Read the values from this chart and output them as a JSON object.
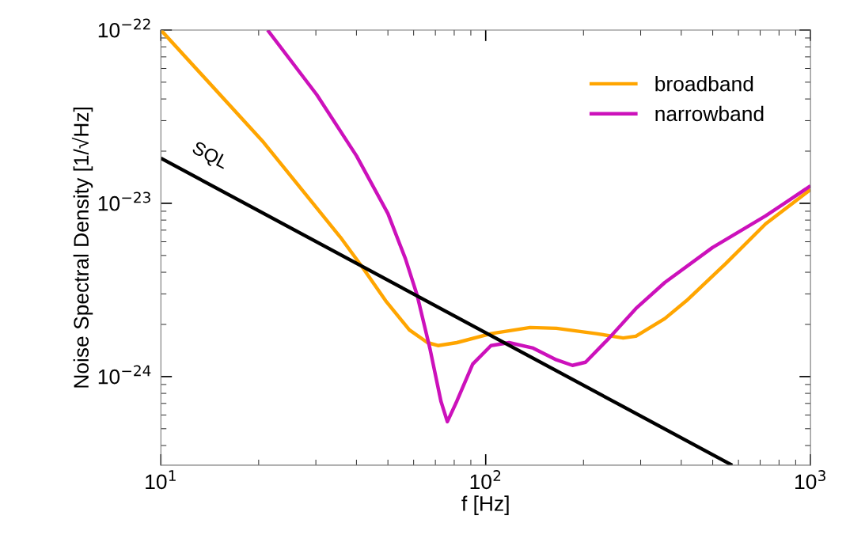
{
  "chart_data": {
    "type": "line",
    "xlabel": "f [Hz]",
    "ylabel": "Noise Spectral Density [1/√Hz]",
    "log": "xy",
    "xlim": [
      10,
      1000
    ],
    "xticks": [
      {
        "value": 10,
        "label": "10$^{1}$"
      },
      {
        "value": 100,
        "label": "10$^{2}$"
      },
      {
        "value": 1000,
        "label": "10$^{3}$"
      }
    ],
    "ylim": [
      3.08e-25,
      1e-22
    ],
    "yticks": [
      {
        "value": 1e-24,
        "label": "10$^{−24}$"
      },
      {
        "value": 1e-23,
        "label": "10$^{−23}$"
      },
      {
        "value": 1e-22,
        "label": "10$^{−22}$"
      }
    ],
    "grid": false,
    "legend": "top right",
    "marker": "none",
    "line_style": "solid",
    "series": [
      {
        "name": "broadband",
        "color": "#ffa500",
        "x": [
          10,
          20.7,
          35.7,
          41.6,
          49.2,
          58.2,
          66.2,
          71.3,
          81.5,
          103.8,
          137,
          165,
          219,
          265,
          290,
          356,
          415,
          549,
          727,
          1000
        ],
        "values": [
          1e-22,
          2.25e-23,
          6.37e-24,
          4.31e-24,
          2.74e-24,
          1.86e-24,
          1.57e-24,
          1.51e-24,
          1.57e-24,
          1.77e-24,
          1.92e-24,
          1.9e-24,
          1.77e-24,
          1.67e-24,
          1.71e-24,
          2.16e-24,
          2.74e-24,
          4.5e-24,
          7.6e-24,
          1.2e-23
        ]
      },
      {
        "name": "narrowband",
        "color": "#cc11bb",
        "x": [
          21.3,
          30.2,
          40.0,
          50.0,
          56.6,
          61.5,
          67.3,
          72.8,
          76.2,
          81.5,
          91.2,
          103.8,
          118,
          140,
          165,
          185,
          203,
          240,
          290,
          356,
          499,
          727,
          1000
        ],
        "values": [
          1e-22,
          4.23e-23,
          1.88e-23,
          8.73e-24,
          4.79e-24,
          2.95e-24,
          1.46e-24,
          7.21e-25,
          5.49e-25,
          7.21e-25,
          1.18e-24,
          1.51e-24,
          1.57e-24,
          1.46e-24,
          1.25e-24,
          1.16e-24,
          1.21e-24,
          1.67e-24,
          2.47e-24,
          3.49e-24,
          5.55e-24,
          8.45e-24,
          1.26e-23
        ]
      },
      {
        "color": "#000000",
        "x": [
          10,
          574
        ],
        "values": [
          1.82e-23,
          3.08e-25
        ]
      }
    ],
    "annotations": [
      "SQL"
    ]
  }
}
